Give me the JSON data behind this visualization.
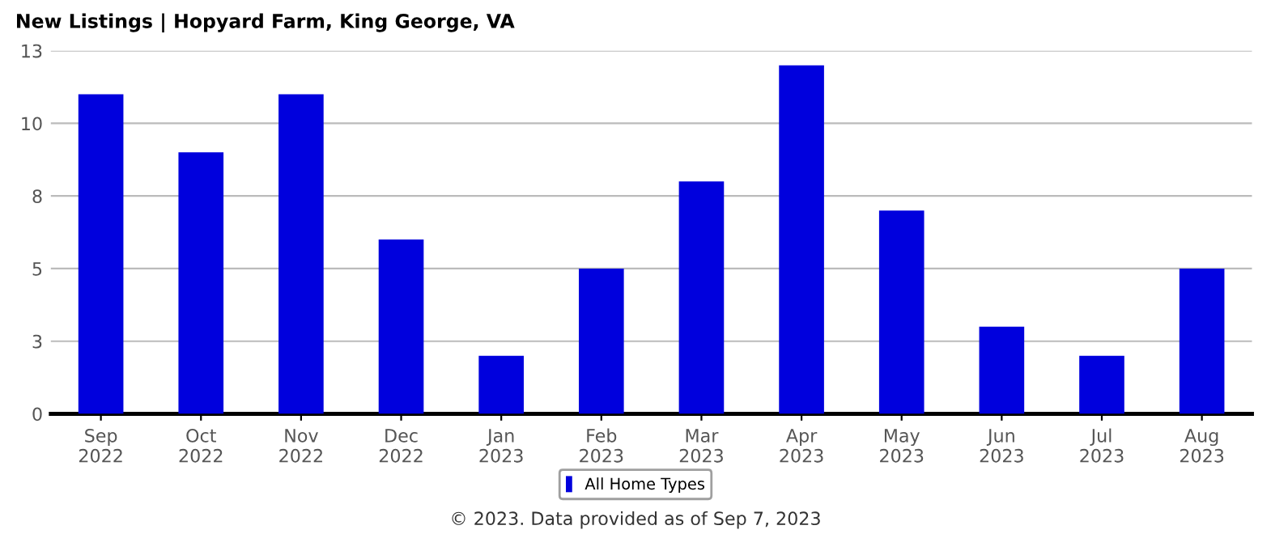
{
  "chart_data": {
    "type": "bar",
    "title": "New Listings | Hopyard Farm, King George, VA",
    "categories": [
      "Sep\n2022",
      "Oct\n2022",
      "Nov\n2022",
      "Dec\n2022",
      "Jan\n2023",
      "Feb\n2023",
      "Mar\n2023",
      "Apr\n2023",
      "May\n2023",
      "Jun\n2023",
      "Jul\n2023",
      "Aug\n2023"
    ],
    "series": [
      {
        "name": "All Home Types",
        "color": "#0000dd",
        "values": [
          11,
          9,
          11,
          6,
          2,
          5,
          8,
          12,
          7,
          3,
          2,
          5
        ]
      }
    ],
    "ylim": [
      0,
      12.5
    ],
    "yticks": [
      0,
      {
        "value": 2.5,
        "label": "3"
      },
      5,
      {
        "value": 7.5,
        "label": "8"
      },
      10,
      {
        "value": 12.5,
        "label": "13"
      }
    ],
    "grid": "y",
    "legend": "bottom",
    "annotations": [
      "© 2023. Data provided as of Sep 7, 2023"
    ]
  }
}
